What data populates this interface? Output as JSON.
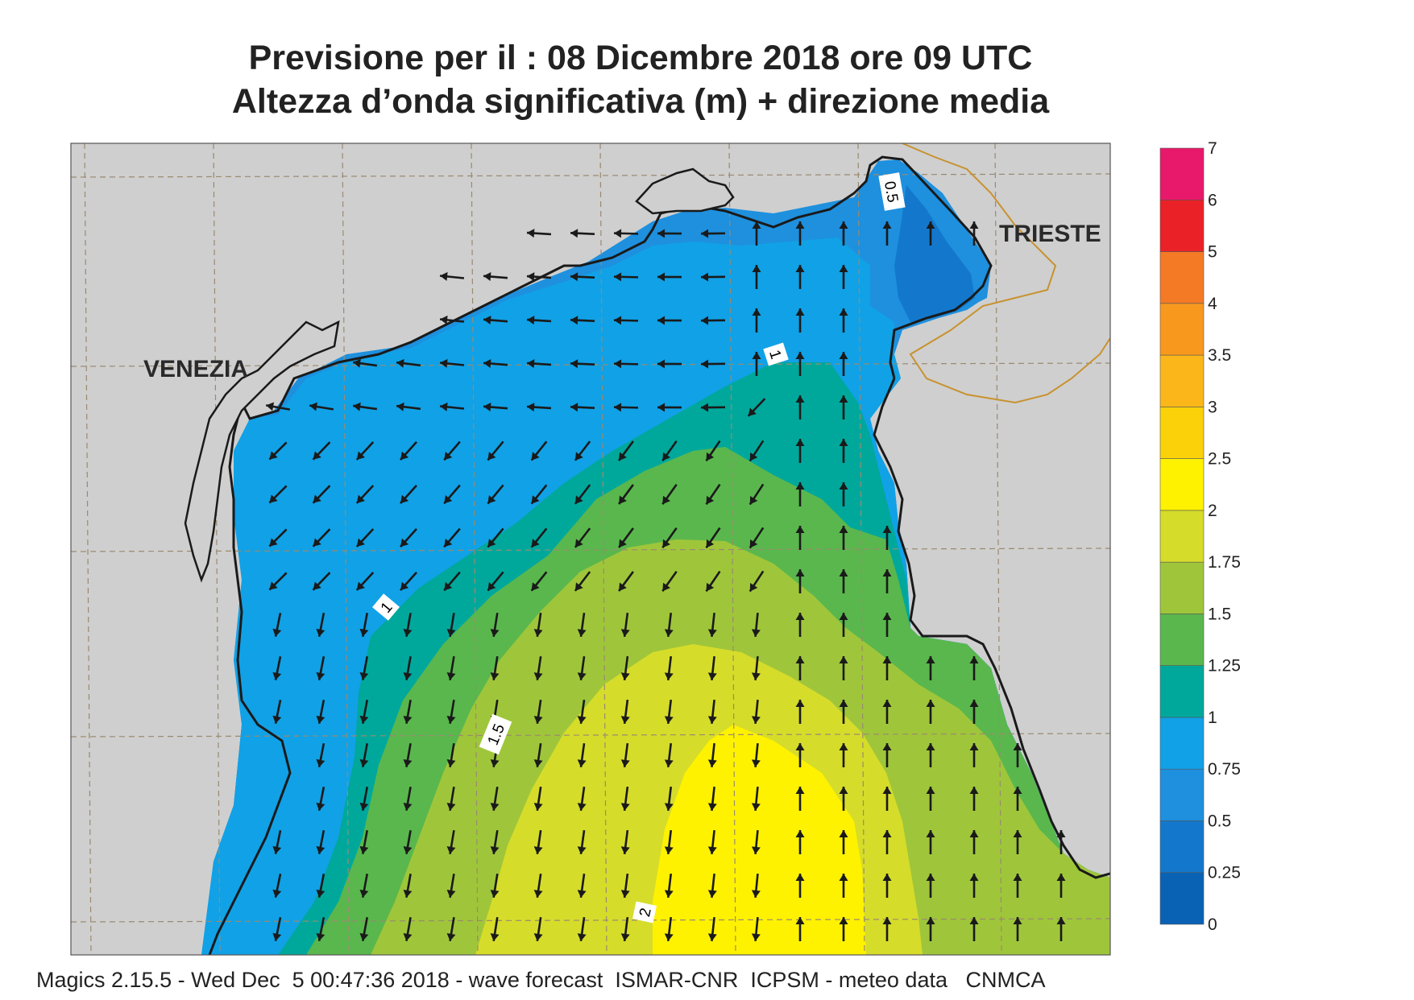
{
  "title": {
    "line1": "Previsione per il  :  08 Dicembre  2018   ore 09 UTC",
    "line2": "Altezza d’onda significativa (m) + direzione media"
  },
  "map": {
    "labels": {
      "venezia": "VENEZIA",
      "trieste": "TRIESTE"
    },
    "contour_labels": [
      "0.5",
      "1",
      "1",
      "1.5",
      "2"
    ],
    "colors": {
      "land": "#cfcfcf",
      "coast": "#1a1a1a",
      "border": "#c8922f",
      "grid": "#9a8a70",
      "arrow": "#1a1a1a"
    }
  },
  "colorbar": {
    "levels": [
      "0",
      "0.25",
      "0.5",
      "0.75",
      "1",
      "1.25",
      "1.5",
      "1.75",
      "2",
      "2.5",
      "3",
      "3.5",
      "4",
      "5",
      "6",
      "7"
    ],
    "colors": [
      "#0a62b5",
      "#1378cc",
      "#1e90de",
      "#11a1e6",
      "#00a89c",
      "#5ab74d",
      "#9fc63a",
      "#d6dc2a",
      "#fff200",
      "#fbd10a",
      "#fbb71a",
      "#f8991e",
      "#f47a26",
      "#ea2127",
      "#e8196a"
    ]
  },
  "footer": "Magics 2.15.5 - Wed Dec  5 00:47:36 2018 - wave forecast  ISMAR-CNR  ICPSM - meteo data   CNMCA"
}
